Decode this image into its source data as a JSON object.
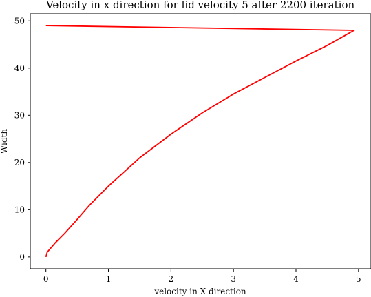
{
  "chart_data": {
    "type": "line",
    "title": "Velocity in x direction for lid velocity 5 after 2200 iteration",
    "xlabel": "velocity in X direction",
    "ylabel": "Width",
    "xlim": [
      -0.25,
      5.2
    ],
    "ylim": [
      -2.5,
      51.5
    ],
    "xticks": [
      0,
      1,
      2,
      3,
      4,
      5
    ],
    "yticks": [
      0,
      10,
      20,
      30,
      40,
      50
    ],
    "grid": false,
    "series": [
      {
        "color": "#ff0000",
        "points": [
          [
            0.0,
            0
          ],
          [
            0.02,
            1
          ],
          [
            0.15,
            3
          ],
          [
            0.3,
            5
          ],
          [
            0.47,
            7.5
          ],
          [
            0.7,
            11
          ],
          [
            1.0,
            15
          ],
          [
            1.5,
            21
          ],
          [
            2.0,
            26
          ],
          [
            2.5,
            30.5
          ],
          [
            3.0,
            34.5
          ],
          [
            3.5,
            38
          ],
          [
            4.0,
            41.5
          ],
          [
            4.5,
            44.8
          ],
          [
            4.93,
            48
          ],
          [
            0.0,
            49
          ]
        ]
      }
    ]
  }
}
